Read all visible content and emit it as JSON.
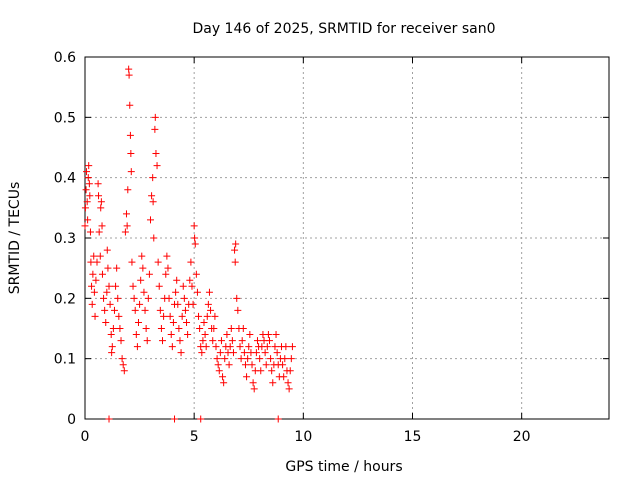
{
  "chart_data": {
    "type": "scatter",
    "title": "Day 146 of 2025, SRMTID for receiver san0",
    "xlabel": "GPS time / hours",
    "ylabel": "SRMTID / TECUs",
    "xlim": [
      0,
      24
    ],
    "ylim": [
      0,
      0.6
    ],
    "xticks": [
      0,
      5,
      10,
      15,
      20
    ],
    "yticks": [
      0,
      0.1,
      0.2,
      0.3,
      0.4,
      0.5,
      0.6
    ],
    "xtick_labels": [
      "0",
      "5",
      "10",
      "15",
      "20"
    ],
    "ytick_labels": [
      "0",
      "0.1",
      "0.2",
      "0.3",
      "0.4",
      "0.5",
      "0.6"
    ],
    "grid": true,
    "marker": "+",
    "series": [
      {
        "name": "SRMTID",
        "color": "#ff0000",
        "points": [
          [
            0.0,
            0.32
          ],
          [
            0.02,
            0.35
          ],
          [
            0.05,
            0.38
          ],
          [
            0.07,
            0.41
          ],
          [
            0.1,
            0.36
          ],
          [
            0.12,
            0.33
          ],
          [
            0.15,
            0.4
          ],
          [
            0.17,
            0.42
          ],
          [
            0.2,
            0.39
          ],
          [
            0.22,
            0.37
          ],
          [
            0.25,
            0.31
          ],
          [
            0.27,
            0.26
          ],
          [
            0.3,
            0.22
          ],
          [
            0.33,
            0.19
          ],
          [
            0.36,
            0.24
          ],
          [
            0.4,
            0.27
          ],
          [
            0.43,
            0.21
          ],
          [
            0.46,
            0.17
          ],
          [
            0.5,
            0.23
          ],
          [
            0.55,
            0.26
          ],
          [
            0.6,
            0.39
          ],
          [
            0.62,
            0.37
          ],
          [
            0.65,
            0.31
          ],
          [
            0.7,
            0.27
          ],
          [
            0.72,
            0.35
          ],
          [
            0.75,
            0.36
          ],
          [
            0.78,
            0.32
          ],
          [
            0.8,
            0.24
          ],
          [
            0.85,
            0.2
          ],
          [
            0.9,
            0.18
          ],
          [
            0.95,
            0.16
          ],
          [
            1.0,
            0.21
          ],
          [
            1.02,
            0.28
          ],
          [
            1.05,
            0.25
          ],
          [
            1.1,
            0.22
          ],
          [
            1.15,
            0.19
          ],
          [
            1.2,
            0.14
          ],
          [
            1.22,
            0.11
          ],
          [
            1.25,
            0.12
          ],
          [
            1.3,
            0.15
          ],
          [
            1.35,
            0.18
          ],
          [
            1.4,
            0.22
          ],
          [
            1.45,
            0.25
          ],
          [
            1.5,
            0.2
          ],
          [
            1.55,
            0.17
          ],
          [
            1.6,
            0.15
          ],
          [
            1.65,
            0.13
          ],
          [
            1.7,
            0.1
          ],
          [
            1.75,
            0.09
          ],
          [
            1.8,
            0.08
          ],
          [
            1.85,
            0.31
          ],
          [
            1.9,
            0.34
          ],
          [
            1.93,
            0.32
          ],
          [
            1.96,
            0.38
          ],
          [
            2.0,
            0.58
          ],
          [
            2.02,
            0.57
          ],
          [
            2.05,
            0.52
          ],
          [
            2.08,
            0.47
          ],
          [
            2.1,
            0.44
          ],
          [
            2.12,
            0.41
          ],
          [
            2.15,
            0.26
          ],
          [
            2.2,
            0.22
          ],
          [
            2.25,
            0.2
          ],
          [
            2.3,
            0.18
          ],
          [
            2.35,
            0.14
          ],
          [
            2.4,
            0.12
          ],
          [
            2.45,
            0.16
          ],
          [
            2.5,
            0.19
          ],
          [
            2.55,
            0.23
          ],
          [
            2.6,
            0.27
          ],
          [
            2.65,
            0.25
          ],
          [
            2.7,
            0.21
          ],
          [
            2.75,
            0.18
          ],
          [
            2.8,
            0.15
          ],
          [
            2.85,
            0.13
          ],
          [
            2.9,
            0.2
          ],
          [
            2.95,
            0.24
          ],
          [
            3.0,
            0.33
          ],
          [
            3.05,
            0.37
          ],
          [
            3.1,
            0.4
          ],
          [
            3.12,
            0.36
          ],
          [
            3.15,
            0.3
          ],
          [
            3.2,
            0.48
          ],
          [
            3.22,
            0.5
          ],
          [
            3.25,
            0.44
          ],
          [
            3.3,
            0.42
          ],
          [
            3.35,
            0.26
          ],
          [
            3.4,
            0.22
          ],
          [
            3.45,
            0.18
          ],
          [
            3.5,
            0.15
          ],
          [
            3.55,
            0.13
          ],
          [
            3.6,
            0.17
          ],
          [
            3.65,
            0.2
          ],
          [
            3.7,
            0.24
          ],
          [
            3.75,
            0.27
          ],
          [
            3.8,
            0.25
          ],
          [
            3.85,
            0.2
          ],
          [
            3.9,
            0.17
          ],
          [
            3.95,
            0.14
          ],
          [
            4.0,
            0.12
          ],
          [
            4.05,
            0.16
          ],
          [
            4.1,
            0.19
          ],
          [
            4.15,
            0.21
          ],
          [
            4.2,
            0.23
          ],
          [
            4.25,
            0.19
          ],
          [
            4.3,
            0.15
          ],
          [
            4.35,
            0.13
          ],
          [
            4.4,
            0.11
          ],
          [
            4.45,
            0.17
          ],
          [
            4.5,
            0.22
          ],
          [
            4.55,
            0.2
          ],
          [
            4.6,
            0.18
          ],
          [
            4.65,
            0.16
          ],
          [
            4.7,
            0.14
          ],
          [
            4.75,
            0.19
          ],
          [
            4.8,
            0.23
          ],
          [
            4.85,
            0.26
          ],
          [
            4.9,
            0.22
          ],
          [
            4.95,
            0.19
          ],
          [
            5.0,
            0.32
          ],
          [
            5.02,
            0.3
          ],
          [
            5.05,
            0.29
          ],
          [
            5.1,
            0.24
          ],
          [
            5.15,
            0.21
          ],
          [
            5.2,
            0.17
          ],
          [
            5.25,
            0.15
          ],
          [
            5.3,
            0.12
          ],
          [
            5.35,
            0.11
          ],
          [
            5.4,
            0.13
          ],
          [
            5.45,
            0.16
          ],
          [
            5.5,
            0.14
          ],
          [
            5.55,
            0.12
          ],
          [
            5.6,
            0.17
          ],
          [
            5.65,
            0.19
          ],
          [
            5.7,
            0.21
          ],
          [
            5.75,
            0.18
          ],
          [
            5.8,
            0.15
          ],
          [
            5.85,
            0.13
          ],
          [
            5.9,
            0.15
          ],
          [
            5.95,
            0.17
          ],
          [
            6.0,
            0.12
          ],
          [
            6.05,
            0.1
          ],
          [
            6.1,
            0.09
          ],
          [
            6.15,
            0.08
          ],
          [
            6.2,
            0.11
          ],
          [
            6.25,
            0.13
          ],
          [
            6.3,
            0.07
          ],
          [
            6.35,
            0.06
          ],
          [
            6.4,
            0.1
          ],
          [
            6.45,
            0.12
          ],
          [
            6.5,
            0.14
          ],
          [
            6.55,
            0.11
          ],
          [
            6.6,
            0.09
          ],
          [
            6.65,
            0.12
          ],
          [
            6.7,
            0.15
          ],
          [
            6.75,
            0.13
          ],
          [
            6.8,
            0.11
          ],
          [
            6.85,
            0.28
          ],
          [
            6.88,
            0.26
          ],
          [
            6.9,
            0.29
          ],
          [
            6.95,
            0.2
          ],
          [
            7.0,
            0.18
          ],
          [
            7.05,
            0.15
          ],
          [
            7.1,
            0.12
          ],
          [
            7.15,
            0.1
          ],
          [
            7.2,
            0.13
          ],
          [
            7.25,
            0.15
          ],
          [
            7.3,
            0.11
          ],
          [
            7.35,
            0.09
          ],
          [
            7.4,
            0.07
          ],
          [
            7.45,
            0.1
          ],
          [
            7.5,
            0.12
          ],
          [
            7.55,
            0.14
          ],
          [
            7.6,
            0.11
          ],
          [
            7.65,
            0.09
          ],
          [
            7.7,
            0.06
          ],
          [
            7.75,
            0.05
          ],
          [
            7.8,
            0.08
          ],
          [
            7.85,
            0.11
          ],
          [
            7.9,
            0.13
          ],
          [
            7.95,
            0.12
          ],
          [
            8.0,
            0.1
          ],
          [
            8.05,
            0.08
          ],
          [
            8.1,
            0.12
          ],
          [
            8.15,
            0.14
          ],
          [
            8.2,
            0.13
          ],
          [
            8.25,
            0.11
          ],
          [
            8.3,
            0.09
          ],
          [
            8.35,
            0.12
          ],
          [
            8.4,
            0.14
          ],
          [
            8.45,
            0.13
          ],
          [
            8.5,
            0.1
          ],
          [
            8.55,
            0.08
          ],
          [
            8.6,
            0.06
          ],
          [
            8.65,
            0.09
          ],
          [
            8.7,
            0.12
          ],
          [
            8.75,
            0.14
          ],
          [
            8.8,
            0.11
          ],
          [
            8.85,
            0.09
          ],
          [
            8.9,
            0.07
          ],
          [
            8.95,
            0.1
          ],
          [
            9.0,
            0.12
          ],
          [
            9.05,
            0.09
          ],
          [
            9.1,
            0.07
          ],
          [
            9.15,
            0.1
          ],
          [
            9.2,
            0.12
          ],
          [
            9.25,
            0.08
          ],
          [
            9.3,
            0.06
          ],
          [
            9.35,
            0.05
          ],
          [
            9.4,
            0.08
          ],
          [
            9.45,
            0.1
          ],
          [
            9.5,
            0.12
          ],
          [
            1.1,
            0.0
          ],
          [
            4.1,
            0.0
          ],
          [
            5.3,
            0.0
          ],
          [
            8.85,
            0.0
          ]
        ]
      }
    ]
  }
}
